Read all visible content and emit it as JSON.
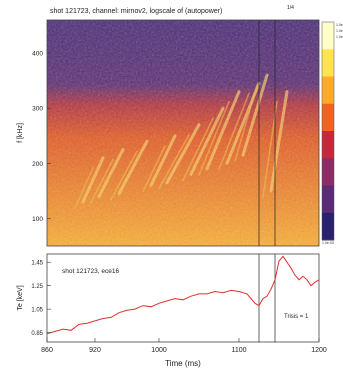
{
  "chart_data": [
    {
      "type": "heatmap",
      "title": "shot 121723, channel: mirnov2, logscale of (autopower)",
      "title_superscript": "1/4",
      "ylabel": "f [kHz]",
      "yticks": [
        100,
        200,
        300,
        400
      ],
      "ylim": [
        50,
        460
      ],
      "xlim": [
        860,
        1200
      ],
      "xticks": [
        860,
        920,
        1000,
        1100,
        1200
      ],
      "colorbar": {
        "labels": [
          "1.0e+01",
          "1.0e+00",
          "1.0e-01"
        ],
        "bottom_label": "1.0e-03",
        "colors": [
          "#ffffc8",
          "#ffe450",
          "#ffaa2a",
          "#f0641e",
          "#c8283c",
          "#8c2c64",
          "#5a2c78",
          "#2a2070"
        ]
      },
      "modes": [
        {
          "x0": 905,
          "f0": 130,
          "x1": 930,
          "f1": 210
        },
        {
          "x0": 925,
          "f0": 140,
          "x1": 955,
          "f1": 225
        },
        {
          "x0": 950,
          "f0": 145,
          "x1": 985,
          "f1": 240
        },
        {
          "x0": 990,
          "f0": 160,
          "x1": 1020,
          "f1": 250
        },
        {
          "x0": 1010,
          "f0": 165,
          "x1": 1050,
          "f1": 270
        },
        {
          "x0": 1040,
          "f0": 180,
          "x1": 1080,
          "f1": 300
        },
        {
          "x0": 1060,
          "f0": 190,
          "x1": 1100,
          "f1": 330
        },
        {
          "x0": 1085,
          "f0": 200,
          "x1": 1125,
          "f1": 345
        },
        {
          "x0": 1105,
          "f0": 215,
          "x1": 1135,
          "f1": 360
        },
        {
          "x0": 1140,
          "f0": 150,
          "x1": 1160,
          "f1": 330
        }
      ],
      "markers_x": [
        1125,
        1145
      ]
    },
    {
      "type": "line",
      "annotation": "shot 121723, ece16",
      "side_label": "Trisis = 1",
      "xlabel": "Time (ms)",
      "ylabel": "Te [keV]",
      "yticks": [
        "1.45",
        "1.25",
        "1.05",
        "0.85"
      ],
      "ytick_values": [
        1.45,
        1.25,
        1.05,
        0.85
      ],
      "ylim": [
        0.77,
        1.52
      ],
      "xlim": [
        860,
        1200
      ],
      "xticks": [
        "860",
        "920",
        "1000",
        "1100",
        "1200"
      ],
      "xtick_values": [
        860,
        920,
        1000,
        1100,
        1200
      ],
      "x": [
        860,
        870,
        880,
        890,
        900,
        910,
        920,
        930,
        940,
        950,
        960,
        970,
        980,
        990,
        1000,
        1010,
        1020,
        1030,
        1040,
        1050,
        1060,
        1070,
        1080,
        1090,
        1100,
        1110,
        1120,
        1125,
        1130,
        1135,
        1140,
        1145,
        1150,
        1155,
        1160,
        1165,
        1170,
        1175,
        1180,
        1185,
        1190,
        1195,
        1200
      ],
      "y": [
        0.84,
        0.86,
        0.88,
        0.87,
        0.92,
        0.93,
        0.95,
        0.97,
        0.98,
        1.02,
        1.04,
        1.05,
        1.08,
        1.07,
        1.1,
        1.12,
        1.14,
        1.13,
        1.16,
        1.18,
        1.18,
        1.2,
        1.19,
        1.21,
        1.2,
        1.18,
        1.1,
        1.08,
        1.14,
        1.16,
        1.22,
        1.3,
        1.46,
        1.5,
        1.45,
        1.4,
        1.34,
        1.3,
        1.33,
        1.3,
        1.25,
        1.28,
        1.3
      ],
      "color": "#e03030",
      "markers_x": [
        1125,
        1145
      ]
    }
  ]
}
